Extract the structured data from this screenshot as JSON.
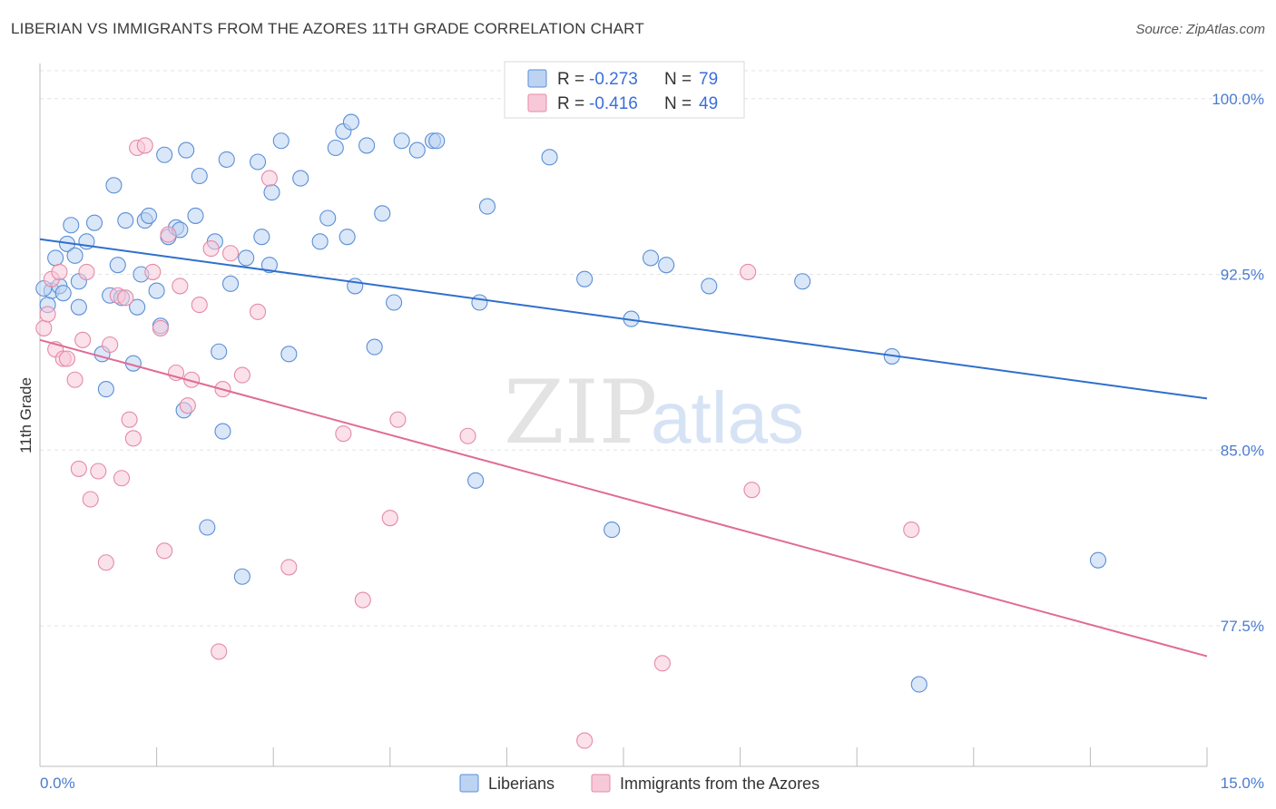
{
  "title": "LIBERIAN VS IMMIGRANTS FROM THE AZORES 11TH GRADE CORRELATION CHART",
  "source": "Source: ZipAtlas.com",
  "watermark": {
    "zip": "ZIP",
    "atlas": "atlas"
  },
  "colors": {
    "blue": "#5b8fd6",
    "blue_fill": "#bcd3f2",
    "blue_line": "#2f6fcd",
    "pink": "#e58aa8",
    "pink_fill": "#f7c9d8",
    "pink_line": "#e06b95",
    "tick_text": "#4a7bd0",
    "grid": "#e4e4e4"
  },
  "legend": {
    "rows": [
      {
        "r_label": "R = ",
        "r_value": "-0.273",
        "n_label": "N = ",
        "n_value": "79"
      },
      {
        "r_label": "R = ",
        "r_value": "-0.416",
        "n_label": "N = ",
        "n_value": "49"
      }
    ]
  },
  "chart_data": {
    "type": "scatter",
    "title": "LIBERIAN VS IMMIGRANTS FROM THE AZORES 11TH GRADE CORRELATION CHART",
    "xlabel": "",
    "ylabel": "11th Grade",
    "xlim": [
      0.0,
      15.0
    ],
    "ylim": [
      71.5,
      101.5
    ],
    "x_tick_labels": [
      "0.0%",
      "15.0%"
    ],
    "y_ticks": [
      77.5,
      85.0,
      92.5,
      100.0
    ],
    "y_tick_labels": [
      "77.5%",
      "85.0%",
      "92.5%",
      "100.0%"
    ],
    "grid": true,
    "series": [
      {
        "name": "Liberians",
        "r": -0.273,
        "n": 79,
        "trend": {
          "x": [
            0.0,
            15.0
          ],
          "y": [
            94.0,
            87.2
          ]
        },
        "points": [
          [
            0.1,
            91.2
          ],
          [
            0.15,
            91.8
          ],
          [
            0.2,
            93.2
          ],
          [
            0.25,
            92.0
          ],
          [
            0.3,
            91.7
          ],
          [
            0.35,
            93.8
          ],
          [
            0.4,
            94.6
          ],
          [
            0.45,
            93.3
          ],
          [
            0.5,
            92.2
          ],
          [
            0.5,
            91.1
          ],
          [
            0.6,
            93.9
          ],
          [
            0.7,
            94.7
          ],
          [
            0.8,
            89.1
          ],
          [
            0.85,
            87.6
          ],
          [
            0.9,
            91.6
          ],
          [
            0.95,
            96.3
          ],
          [
            1.0,
            92.9
          ],
          [
            1.05,
            91.5
          ],
          [
            1.1,
            94.8
          ],
          [
            1.2,
            88.7
          ],
          [
            1.25,
            91.1
          ],
          [
            1.3,
            92.5
          ],
          [
            1.35,
            94.8
          ],
          [
            1.4,
            95.0
          ],
          [
            1.5,
            91.8
          ],
          [
            1.55,
            90.3
          ],
          [
            1.6,
            97.6
          ],
          [
            1.65,
            94.1
          ],
          [
            1.75,
            94.5
          ],
          [
            1.8,
            94.4
          ],
          [
            1.85,
            86.7
          ],
          [
            1.88,
            97.8
          ],
          [
            2.0,
            95.0
          ],
          [
            2.05,
            96.7
          ],
          [
            2.15,
            81.7
          ],
          [
            2.25,
            93.9
          ],
          [
            2.3,
            89.2
          ],
          [
            2.35,
            85.8
          ],
          [
            2.4,
            97.4
          ],
          [
            2.45,
            92.1
          ],
          [
            2.6,
            79.6
          ],
          [
            2.65,
            93.2
          ],
          [
            2.8,
            97.3
          ],
          [
            2.85,
            94.1
          ],
          [
            2.95,
            92.9
          ],
          [
            2.98,
            96.0
          ],
          [
            3.1,
            98.2
          ],
          [
            3.2,
            89.1
          ],
          [
            3.35,
            96.6
          ],
          [
            3.6,
            93.9
          ],
          [
            3.7,
            94.9
          ],
          [
            3.8,
            97.9
          ],
          [
            3.9,
            98.6
          ],
          [
            3.95,
            94.1
          ],
          [
            4.0,
            99.0
          ],
          [
            4.05,
            92.0
          ],
          [
            4.2,
            98.0
          ],
          [
            4.3,
            89.4
          ],
          [
            4.4,
            95.1
          ],
          [
            4.55,
            91.3
          ],
          [
            4.65,
            98.2
          ],
          [
            4.85,
            97.8
          ],
          [
            5.05,
            98.2
          ],
          [
            5.1,
            98.2
          ],
          [
            5.6,
            83.7
          ],
          [
            5.65,
            91.3
          ],
          [
            5.75,
            95.4
          ],
          [
            6.55,
            97.5
          ],
          [
            7.0,
            92.3
          ],
          [
            7.35,
            81.6
          ],
          [
            7.6,
            90.6
          ],
          [
            7.85,
            93.2
          ],
          [
            8.05,
            92.9
          ],
          [
            8.6,
            92.0
          ],
          [
            9.8,
            92.2
          ],
          [
            10.95,
            89.0
          ],
          [
            11.3,
            75.0
          ],
          [
            13.6,
            80.3
          ],
          [
            0.05,
            91.9
          ]
        ]
      },
      {
        "name": "Immigrants from the Azores",
        "r": -0.416,
        "n": 49,
        "trend": {
          "x": [
            0.0,
            15.0
          ],
          "y": [
            89.7,
            76.2
          ]
        },
        "points": [
          [
            0.05,
            90.2
          ],
          [
            0.1,
            90.8
          ],
          [
            0.15,
            92.3
          ],
          [
            0.2,
            89.3
          ],
          [
            0.25,
            92.6
          ],
          [
            0.3,
            88.9
          ],
          [
            0.35,
            88.9
          ],
          [
            0.45,
            88.0
          ],
          [
            0.5,
            84.2
          ],
          [
            0.55,
            89.7
          ],
          [
            0.6,
            92.6
          ],
          [
            0.65,
            82.9
          ],
          [
            0.75,
            84.1
          ],
          [
            0.85,
            80.2
          ],
          [
            0.9,
            89.5
          ],
          [
            1.0,
            91.6
          ],
          [
            1.05,
            83.8
          ],
          [
            1.1,
            91.5
          ],
          [
            1.15,
            86.3
          ],
          [
            1.2,
            85.5
          ],
          [
            1.25,
            97.9
          ],
          [
            1.35,
            98.0
          ],
          [
            1.45,
            92.6
          ],
          [
            1.55,
            90.2
          ],
          [
            1.6,
            80.7
          ],
          [
            1.65,
            94.2
          ],
          [
            1.75,
            88.3
          ],
          [
            1.8,
            92.0
          ],
          [
            1.9,
            86.9
          ],
          [
            1.95,
            88.0
          ],
          [
            2.05,
            91.2
          ],
          [
            2.2,
            93.6
          ],
          [
            2.3,
            76.4
          ],
          [
            2.35,
            87.6
          ],
          [
            2.45,
            93.4
          ],
          [
            2.6,
            88.2
          ],
          [
            2.8,
            90.9
          ],
          [
            2.95,
            96.6
          ],
          [
            3.2,
            80.0
          ],
          [
            3.9,
            85.7
          ],
          [
            4.15,
            78.6
          ],
          [
            4.5,
            82.1
          ],
          [
            4.6,
            86.3
          ],
          [
            5.5,
            85.6
          ],
          [
            7.0,
            72.6
          ],
          [
            8.0,
            75.9
          ],
          [
            9.1,
            92.6
          ],
          [
            9.15,
            83.3
          ],
          [
            11.2,
            81.6
          ]
        ]
      }
    ]
  }
}
